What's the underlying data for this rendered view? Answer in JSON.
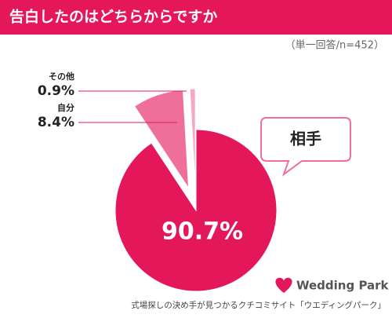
{
  "chart_data": {
    "type": "pie",
    "title": "告白したのはどちらからですか",
    "subtitle": "（単一回答/n=452）",
    "categories": [
      "相手",
      "自分",
      "その他"
    ],
    "values": [
      90.7,
      8.4,
      0.9
    ],
    "value_labels": [
      "90.7%",
      "8.4%",
      "0.9%"
    ],
    "colors": [
      "#e5175b",
      "#ef6f9b",
      "#f6a9c3"
    ],
    "exploded": [
      false,
      true,
      true
    ],
    "logo": "Wedding Park",
    "source": "式場探しの決め手が見つかるクチコミサイト「ウエディングパーク」"
  }
}
